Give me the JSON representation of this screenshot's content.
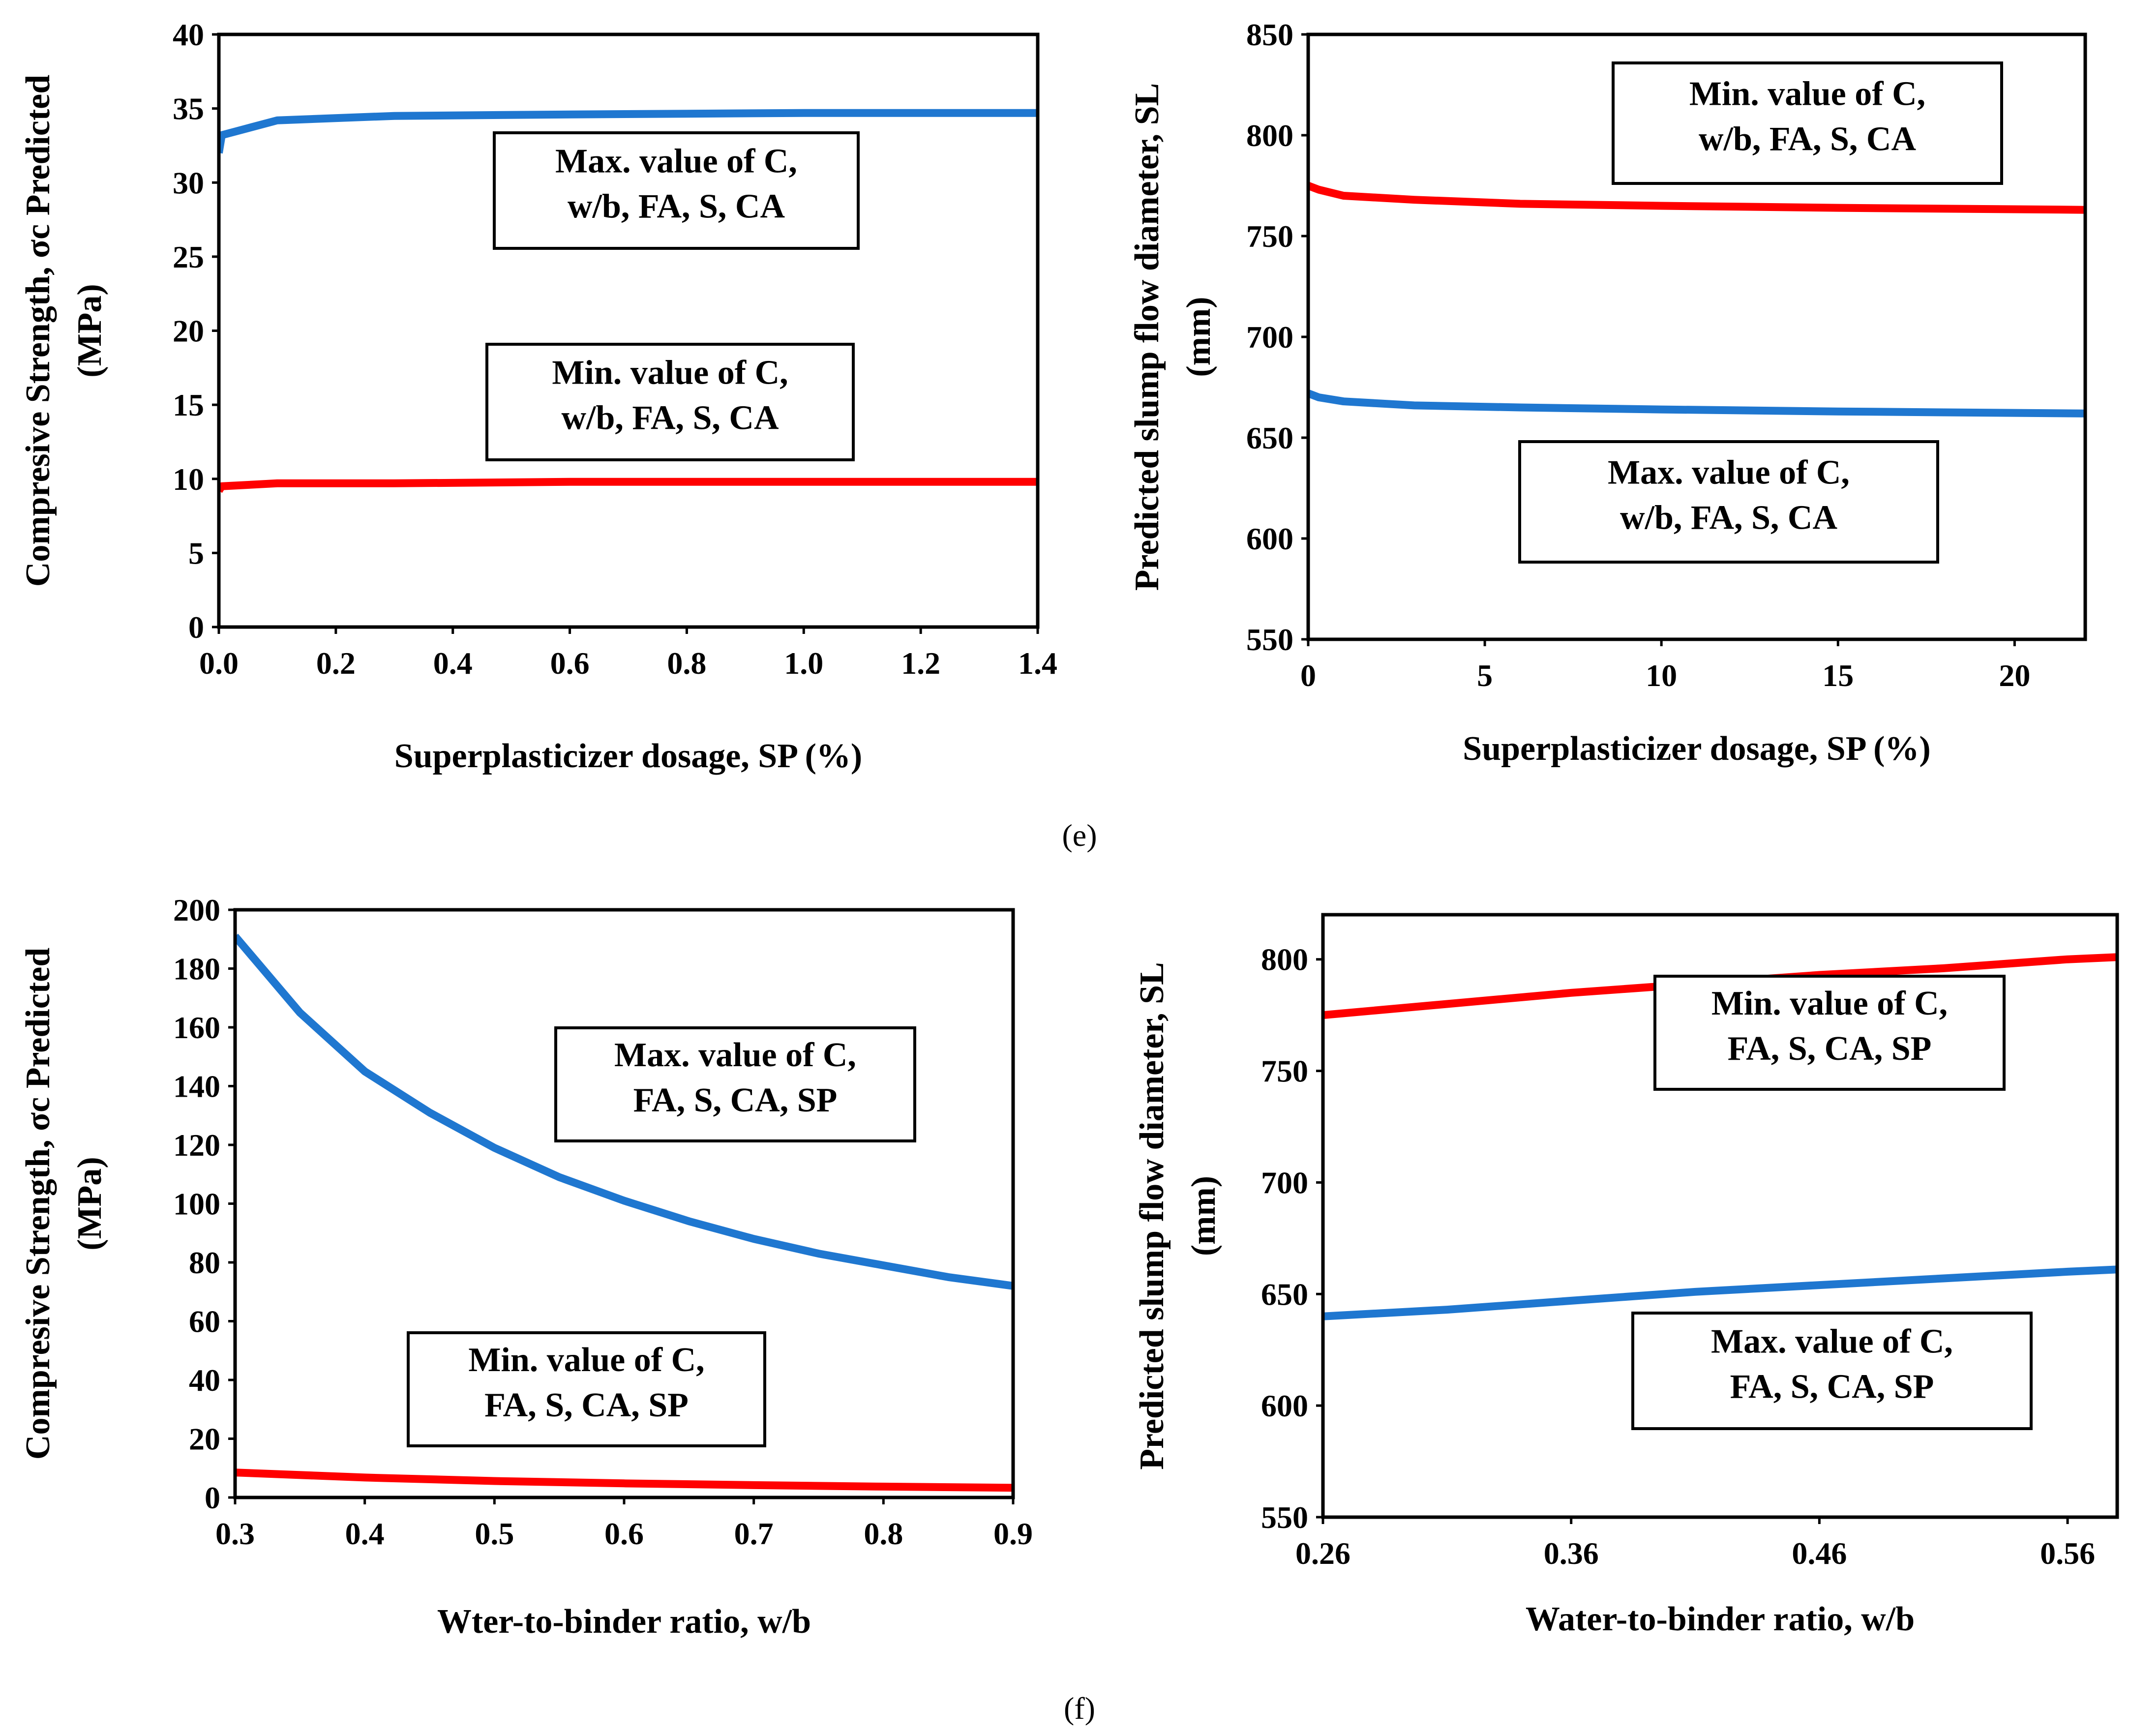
{
  "colors": {
    "red_series": "#ff0000",
    "blue_series": "#1f77d0",
    "axis": "#000000"
  },
  "panel_labels": [
    "(e)",
    "(f)"
  ],
  "chart_data": [
    {
      "id": "e-left",
      "type": "line",
      "xlabel": "Superplasticizer dosage, SP (%)",
      "ylabel": [
        "Compresive Strength, σc Predicted",
        "(MPa)"
      ],
      "xlim": [
        0,
        1.4
      ],
      "ylim": [
        0,
        40
      ],
      "xticks": [
        0,
        0.2,
        0.4,
        0.6,
        0.8,
        1.0,
        1.2,
        1.4
      ],
      "xtick_labels": [
        "0.0",
        "0.2",
        "0.4",
        "0.6",
        "0.8",
        "1.0",
        "1.2",
        "1.4"
      ],
      "yticks": [
        0,
        5,
        10,
        15,
        20,
        25,
        30,
        35,
        40
      ],
      "ytick_labels": [
        "0",
        "5",
        "10",
        "15",
        "20",
        "25",
        "30",
        "35",
        "40"
      ],
      "series": [
        {
          "name": "Max. value of C, w/b, FA, S, CA",
          "color": "blue",
          "x": [
            0,
            0.005,
            0.1,
            0.3,
            0.6,
            1.0,
            1.4
          ],
          "y": [
            32.0,
            33.2,
            34.2,
            34.5,
            34.6,
            34.7,
            34.7
          ]
        },
        {
          "name": "Min. value of C, w/b, FA, S, CA",
          "color": "red",
          "x": [
            0,
            0.005,
            0.1,
            0.3,
            0.6,
            1.0,
            1.4
          ],
          "y": [
            9.2,
            9.5,
            9.7,
            9.7,
            9.8,
            9.8,
            9.8
          ]
        }
      ],
      "annotations": [
        {
          "lines": [
            "Max. value of C,",
            "w/b, FA, S, CA"
          ]
        },
        {
          "lines": [
            "Min. value of C,",
            "w/b, FA, S, CA"
          ]
        }
      ]
    },
    {
      "id": "e-right",
      "type": "line",
      "xlabel": "Superplasticizer dosage, SP (%)",
      "ylabel": [
        "Predicted slump flow diameter, SL",
        "(mm)"
      ],
      "xlim": [
        0,
        22
      ],
      "ylim": [
        550,
        850
      ],
      "xticks": [
        0,
        5,
        10,
        15,
        20
      ],
      "xtick_labels": [
        "0",
        "5",
        "10",
        "15",
        "20"
      ],
      "yticks": [
        550,
        600,
        650,
        700,
        750,
        800,
        850
      ],
      "ytick_labels": [
        "550",
        "600",
        "650",
        "700",
        "750",
        "800",
        "850"
      ],
      "series": [
        {
          "name": "Min. value of C, w/b, FA, S, CA",
          "color": "red",
          "x": [
            0,
            0.3,
            1,
            3,
            6,
            10,
            15,
            22
          ],
          "y": [
            775,
            773,
            770,
            768,
            766,
            765,
            764,
            763
          ]
        },
        {
          "name": "Max. value of C, w/b, FA, S, CA",
          "color": "blue",
          "x": [
            0,
            0.3,
            1,
            3,
            6,
            10,
            15,
            22
          ],
          "y": [
            672,
            670,
            668,
            666,
            665,
            664,
            663,
            662
          ]
        }
      ],
      "annotations": [
        {
          "lines": [
            "Min. value of C,",
            "w/b, FA, S, CA"
          ]
        },
        {
          "lines": [
            "Max. value of C,",
            "w/b, FA, S, CA"
          ]
        }
      ]
    },
    {
      "id": "f-left",
      "type": "line",
      "xlabel": "Wter-to-binder ratio, w/b",
      "ylabel": [
        "Compresive Strength, σc Predicted",
        "(MPa)"
      ],
      "xlim": [
        0.3,
        0.9
      ],
      "ylim": [
        0,
        200
      ],
      "xticks": [
        0.3,
        0.4,
        0.5,
        0.6,
        0.7,
        0.8,
        0.9
      ],
      "xtick_labels": [
        "0.3",
        "0.4",
        "0.5",
        "0.6",
        "0.7",
        "0.8",
        "0.9"
      ],
      "yticks": [
        0,
        20,
        40,
        60,
        80,
        100,
        120,
        140,
        160,
        180,
        200
      ],
      "ytick_labels": [
        "0",
        "20",
        "40",
        "60",
        "80",
        "100",
        "120",
        "140",
        "160",
        "180",
        "200"
      ],
      "series": [
        {
          "name": "Max. value of C, FA, S, CA, SP",
          "color": "blue",
          "x": [
            0.3,
            0.35,
            0.4,
            0.45,
            0.5,
            0.55,
            0.6,
            0.65,
            0.7,
            0.75,
            0.8,
            0.85,
            0.9
          ],
          "y": [
            191,
            165,
            145,
            131,
            119,
            109,
            101,
            94,
            88,
            83,
            79,
            75,
            72
          ]
        },
        {
          "name": "Min. value of C, FA, S, CA, SP",
          "color": "red",
          "x": [
            0.3,
            0.4,
            0.5,
            0.6,
            0.7,
            0.8,
            0.9
          ],
          "y": [
            8.5,
            6.8,
            5.6,
            4.8,
            4.2,
            3.7,
            3.3
          ]
        }
      ],
      "annotations": [
        {
          "lines": [
            "Max. value of C,",
            "FA, S, CA, SP"
          ]
        },
        {
          "lines": [
            "Min. value of C,",
            "FA, S, CA, SP"
          ]
        }
      ]
    },
    {
      "id": "f-right",
      "type": "line",
      "xlabel": "Water-to-binder ratio, w/b",
      "ylabel": [
        "Predicted slump flow diameter, SL",
        "(mm)"
      ],
      "xlim": [
        0.26,
        0.58
      ],
      "ylim": [
        550,
        820
      ],
      "xticks": [
        0.26,
        0.36,
        0.46,
        0.56
      ],
      "xtick_labels": [
        "0.26",
        "0.36",
        "0.46",
        "0.56"
      ],
      "yticks": [
        550,
        600,
        650,
        700,
        750,
        800
      ],
      "ytick_labels": [
        "550",
        "600",
        "650",
        "700",
        "750",
        "800"
      ],
      "series": [
        {
          "name": "Min. value of C, FA, S, CA, SP",
          "color": "red",
          "x": [
            0.26,
            0.31,
            0.36,
            0.41,
            0.46,
            0.51,
            0.56,
            0.58
          ],
          "y": [
            775,
            780,
            785,
            789,
            793,
            796,
            800,
            801
          ]
        },
        {
          "name": "Max. value of C, FA, S, CA, SP",
          "color": "blue",
          "x": [
            0.26,
            0.31,
            0.36,
            0.41,
            0.46,
            0.51,
            0.56,
            0.58
          ],
          "y": [
            640,
            643,
            647,
            651,
            654,
            657,
            660,
            661
          ]
        }
      ],
      "annotations": [
        {
          "lines": [
            "Min. value of C,",
            "FA, S, CA, SP"
          ]
        },
        {
          "lines": [
            "Max. value of C,",
            "FA, S, CA, SP"
          ]
        }
      ]
    }
  ]
}
